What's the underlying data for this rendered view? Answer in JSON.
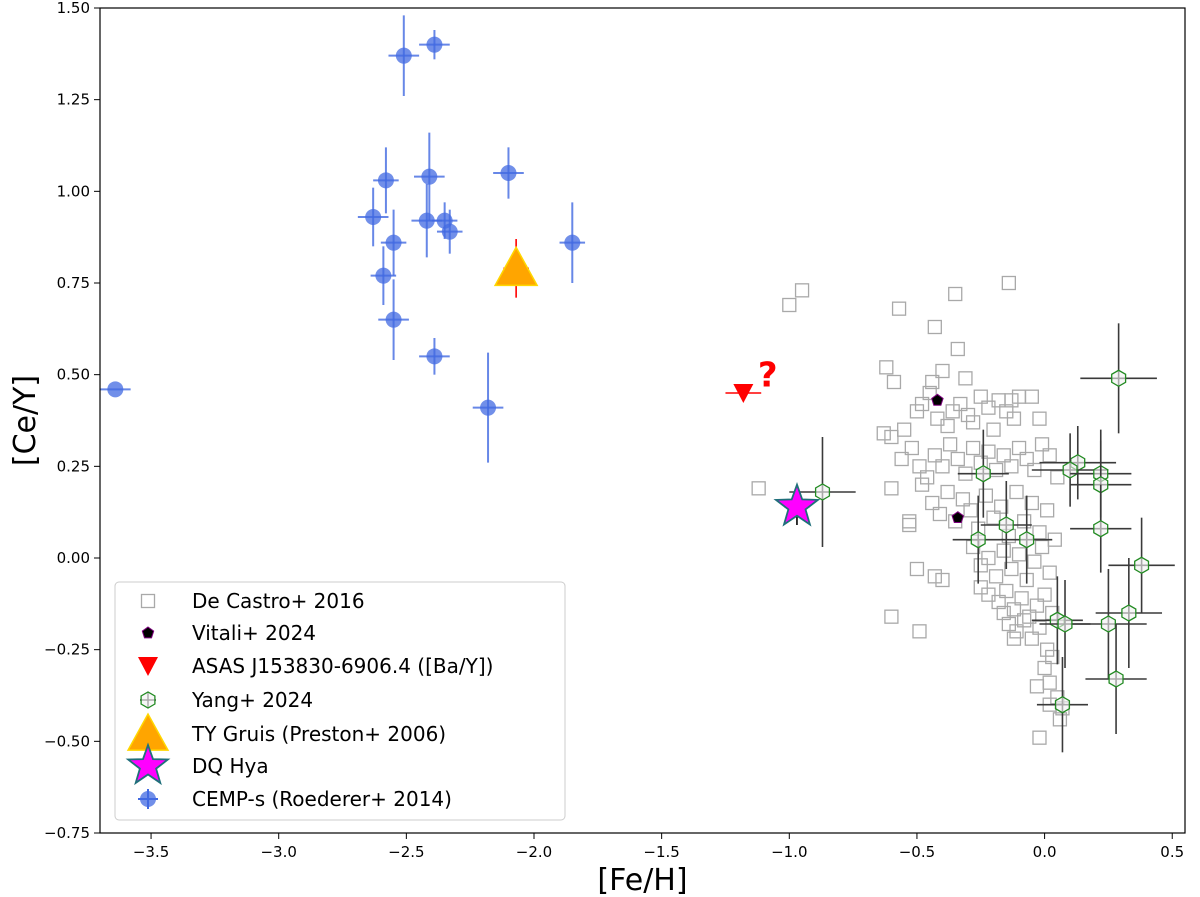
{
  "chart_data": {
    "type": "scatter",
    "xlabel": "[Fe/H]",
    "ylabel": "[Ce/Y]",
    "xlim": [
      -3.7,
      0.55
    ],
    "ylim": [
      -0.75,
      1.5
    ],
    "xticks": [
      -3.5,
      -3.0,
      -2.5,
      -2.0,
      -1.5,
      -1.0,
      -0.5,
      0.0,
      0.5
    ],
    "xtick_labels": [
      "−3.5",
      "−3.0",
      "−2.5",
      "−2.0",
      "−1.5",
      "−1.0",
      "−0.5",
      "0.0",
      "0.5"
    ],
    "yticks": [
      -0.75,
      -0.5,
      -0.25,
      0.0,
      0.25,
      0.5,
      0.75,
      1.0,
      1.25,
      1.5
    ],
    "ytick_labels": [
      "−0.75",
      "−0.50",
      "−0.25",
      "0.00",
      "0.25",
      "0.50",
      "0.75",
      "1.00",
      "1.25",
      "1.50"
    ],
    "legend_position": "lower-left",
    "annotation": {
      "text": "?",
      "x": -1.1,
      "y": 0.5,
      "color": "#ff0000"
    },
    "series": [
      {
        "name": "De Castro+ 2016",
        "marker": "square-open",
        "color": "#a9a9a9",
        "points": [
          [
            -1.0,
            0.69
          ],
          [
            -0.95,
            0.73
          ],
          [
            -0.57,
            0.68
          ],
          [
            -0.43,
            0.63
          ],
          [
            -0.35,
            0.72
          ],
          [
            -0.14,
            0.75
          ],
          [
            -0.34,
            0.57
          ],
          [
            -0.62,
            0.52
          ],
          [
            -0.59,
            0.48
          ],
          [
            -0.44,
            0.48
          ],
          [
            -0.4,
            0.51
          ],
          [
            -0.31,
            0.49
          ],
          [
            -0.13,
            0.43
          ],
          [
            -0.63,
            0.34
          ],
          [
            -0.6,
            0.33
          ],
          [
            -0.55,
            0.35
          ],
          [
            -0.5,
            0.4
          ],
          [
            -0.48,
            0.42
          ],
          [
            -0.45,
            0.45
          ],
          [
            -0.42,
            0.38
          ],
          [
            -0.38,
            0.36
          ],
          [
            -0.36,
            0.4
          ],
          [
            -0.33,
            0.42
          ],
          [
            -0.3,
            0.39
          ],
          [
            -0.28,
            0.37
          ],
          [
            -0.25,
            0.44
          ],
          [
            -0.22,
            0.41
          ],
          [
            -0.2,
            0.35
          ],
          [
            -0.18,
            0.43
          ],
          [
            -0.15,
            0.4
          ],
          [
            -0.12,
            0.38
          ],
          [
            -0.1,
            0.44
          ],
          [
            -0.05,
            0.44
          ],
          [
            -0.02,
            0.38
          ],
          [
            -0.56,
            0.27
          ],
          [
            -0.52,
            0.3
          ],
          [
            -0.49,
            0.25
          ],
          [
            -0.46,
            0.22
          ],
          [
            -0.43,
            0.28
          ],
          [
            -0.4,
            0.25
          ],
          [
            -0.37,
            0.31
          ],
          [
            -0.34,
            0.27
          ],
          [
            -0.31,
            0.23
          ],
          [
            -0.28,
            0.3
          ],
          [
            -0.25,
            0.26
          ],
          [
            -0.22,
            0.29
          ],
          [
            -0.19,
            0.24
          ],
          [
            -0.16,
            0.28
          ],
          [
            -0.13,
            0.25
          ],
          [
            -0.1,
            0.3
          ],
          [
            -0.07,
            0.27
          ],
          [
            -0.04,
            0.24
          ],
          [
            -0.01,
            0.31
          ],
          [
            0.02,
            0.28
          ],
          [
            0.05,
            0.22
          ],
          [
            -1.12,
            0.19
          ],
          [
            -0.6,
            0.19
          ],
          [
            -0.53,
            0.1
          ],
          [
            -0.53,
            0.09
          ],
          [
            -0.48,
            0.2
          ],
          [
            -0.44,
            0.15
          ],
          [
            -0.41,
            0.12
          ],
          [
            -0.38,
            0.18
          ],
          [
            -0.35,
            0.1
          ],
          [
            -0.32,
            0.16
          ],
          [
            -0.29,
            0.13
          ],
          [
            -0.26,
            0.08
          ],
          [
            -0.23,
            0.17
          ],
          [
            -0.2,
            0.11
          ],
          [
            -0.17,
            0.14
          ],
          [
            -0.14,
            0.06
          ],
          [
            -0.11,
            0.18
          ],
          [
            -0.08,
            0.1
          ],
          [
            -0.05,
            0.15
          ],
          [
            -0.02,
            0.07
          ],
          [
            0.01,
            0.13
          ],
          [
            0.04,
            0.05
          ],
          [
            -0.28,
            0.03
          ],
          [
            -0.25,
            -0.02
          ],
          [
            -0.22,
            0.0
          ],
          [
            -0.19,
            -0.05
          ],
          [
            -0.16,
            0.02
          ],
          [
            -0.13,
            -0.03
          ],
          [
            -0.1,
            0.01
          ],
          [
            -0.07,
            -0.06
          ],
          [
            -0.04,
            -0.01
          ],
          [
            -0.01,
            0.03
          ],
          [
            0.02,
            -0.04
          ],
          [
            -0.5,
            -0.03
          ],
          [
            -0.43,
            -0.05
          ],
          [
            -0.4,
            -0.06
          ],
          [
            -0.25,
            -0.08
          ],
          [
            -0.22,
            -0.1
          ],
          [
            -0.18,
            -0.12
          ],
          [
            -0.15,
            -0.09
          ],
          [
            -0.12,
            -0.14
          ],
          [
            -0.09,
            -0.11
          ],
          [
            -0.06,
            -0.16
          ],
          [
            -0.03,
            -0.13
          ],
          [
            0.0,
            -0.1
          ],
          [
            0.03,
            -0.15
          ],
          [
            -0.14,
            -0.18
          ],
          [
            -0.11,
            -0.2
          ],
          [
            -0.08,
            -0.17
          ],
          [
            -0.05,
            -0.22
          ],
          [
            -0.02,
            -0.19
          ],
          [
            0.01,
            -0.25
          ],
          [
            0.03,
            -0.27
          ],
          [
            -0.6,
            -0.16
          ],
          [
            -0.49,
            -0.2
          ],
          [
            0.0,
            -0.3
          ],
          [
            0.02,
            -0.34
          ],
          [
            -0.03,
            -0.35
          ],
          [
            0.05,
            -0.38
          ],
          [
            0.07,
            -0.41
          ],
          [
            0.06,
            -0.44
          ],
          [
            0.02,
            -0.4
          ],
          [
            -0.02,
            -0.49
          ],
          [
            -0.12,
            -0.22
          ],
          [
            -0.16,
            -0.15
          ]
        ]
      },
      {
        "name": "Vitali+ 2024",
        "marker": "pentagon",
        "color": "#000000",
        "edgecolor": "#800080",
        "points": [
          [
            -0.42,
            0.43
          ],
          [
            -0.34,
            0.11
          ]
        ]
      },
      {
        "name": "ASAS J153830-6906.4 ([Ba/Y])",
        "marker": "triangle-down",
        "color": "#ff0000",
        "points": [
          [
            -1.18,
            0.45
          ]
        ],
        "xerr": [
          0.07
        ]
      },
      {
        "name": "Yang+ 2024",
        "marker": "hexagon-open",
        "color": "#228b22",
        "errcolor": "#3a3a3a",
        "points": [
          [
            -0.87,
            0.18
          ],
          [
            -0.24,
            0.23
          ],
          [
            -0.15,
            0.09
          ],
          [
            -0.26,
            0.05
          ],
          [
            -0.07,
            0.05
          ],
          [
            0.13,
            0.26
          ],
          [
            0.1,
            0.24
          ],
          [
            0.22,
            0.23
          ],
          [
            0.22,
            0.2
          ],
          [
            0.29,
            0.49
          ],
          [
            0.22,
            0.08
          ],
          [
            0.38,
            -0.02
          ],
          [
            0.33,
            -0.15
          ],
          [
            0.25,
            -0.18
          ],
          [
            0.05,
            -0.17
          ],
          [
            0.08,
            -0.18
          ],
          [
            0.28,
            -0.33
          ],
          [
            0.07,
            -0.4
          ]
        ],
        "xerr": [
          0.13,
          0.1,
          0.1,
          0.1,
          0.1,
          0.15,
          0.15,
          0.12,
          0.12,
          0.15,
          0.12,
          0.13,
          0.13,
          0.15,
          0.1,
          0.1,
          0.12,
          0.1
        ],
        "yerr": [
          0.15,
          0.12,
          0.12,
          0.12,
          0.12,
          0.1,
          0.1,
          0.12,
          0.12,
          0.15,
          0.12,
          0.13,
          0.15,
          0.15,
          0.12,
          0.12,
          0.15,
          0.13
        ]
      },
      {
        "name": "TY Gruis (Preston+ 2006)",
        "marker": "triangle-up",
        "color": "#ffa500",
        "edgecolor": "#ffd700",
        "errcolor": "#ff0000",
        "points": [
          [
            -2.07,
            0.79
          ]
        ],
        "xerr": [
          0.05
        ],
        "yerr": [
          0.08
        ]
      },
      {
        "name": "DQ Hya",
        "marker": "star",
        "color": "#ff00ff",
        "edgecolor": "#1f6f7a",
        "errcolor": "#000000",
        "points": [
          [
            -0.97,
            0.14
          ]
        ],
        "xerr": [
          0.05
        ],
        "yerr": [
          0.05
        ]
      },
      {
        "name": "CEMP-s (Roederer+ 2014)",
        "marker": "circle",
        "color": "#4169e1",
        "points": [
          [
            -3.64,
            0.46
          ],
          [
            -2.51,
            1.37
          ],
          [
            -2.39,
            1.4
          ],
          [
            -2.58,
            1.03
          ],
          [
            -2.41,
            1.04
          ],
          [
            -2.1,
            1.05
          ],
          [
            -2.63,
            0.93
          ],
          [
            -2.42,
            0.92
          ],
          [
            -2.35,
            0.92
          ],
          [
            -2.33,
            0.89
          ],
          [
            -2.55,
            0.86
          ],
          [
            -1.85,
            0.86
          ],
          [
            -2.59,
            0.77
          ],
          [
            -2.55,
            0.65
          ],
          [
            -2.39,
            0.55
          ],
          [
            -2.18,
            0.41
          ]
        ],
        "xerr": [
          0.06,
          0.06,
          0.06,
          0.05,
          0.06,
          0.06,
          0.06,
          0.06,
          0.05,
          0.05,
          0.05,
          0.05,
          0.05,
          0.06,
          0.06,
          0.06
        ],
        "yerr": [
          0.0,
          0.11,
          0.04,
          0.09,
          0.12,
          0.07,
          0.08,
          0.1,
          0.05,
          0.06,
          0.09,
          0.11,
          0.08,
          0.11,
          0.05,
          0.15
        ]
      }
    ]
  }
}
